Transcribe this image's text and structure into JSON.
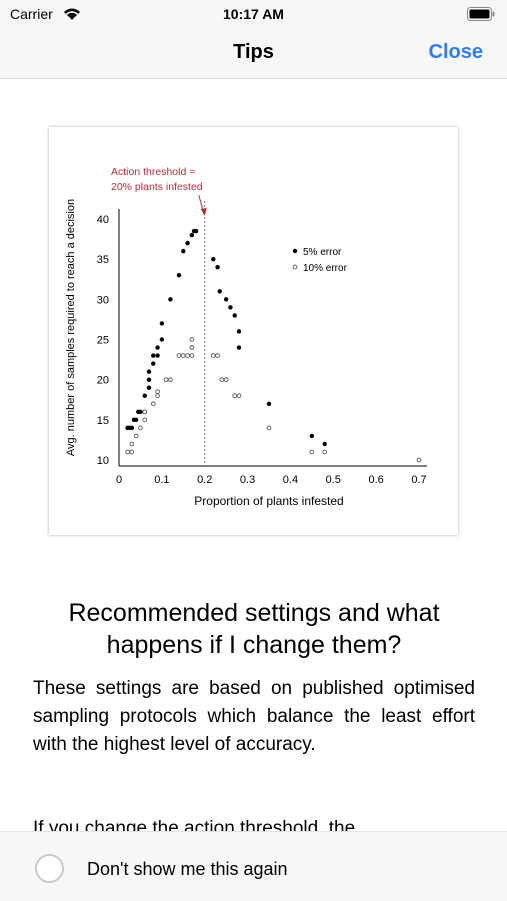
{
  "status_bar": {
    "carrier": "Carrier",
    "time": "10:17 AM"
  },
  "nav": {
    "title": "Tips",
    "close_label": "Close"
  },
  "chart_data": {
    "type": "scatter",
    "annotation": [
      "Action threshold =",
      "20% plants infested"
    ],
    "xlabel": "Proportion of plants infested",
    "ylabel": "Avg. number of samples required to reach a decision",
    "xlim": [
      0,
      0.7
    ],
    "ylim": [
      10,
      40
    ],
    "x_ticks": [
      0,
      0.1,
      0.2,
      0.3,
      0.4,
      0.5,
      0.6,
      0.7
    ],
    "x_tick_labels": [
      "0",
      "0.1",
      "0.2",
      "0.3",
      "0.4",
      "0.5",
      "0.6",
      "0.7"
    ],
    "y_ticks": [
      10,
      15,
      20,
      25,
      30,
      35,
      40
    ],
    "y_tick_labels": [
      "10",
      "15",
      "20",
      "25",
      "30",
      "35",
      "40"
    ],
    "threshold_x": 0.2,
    "legend_position": "top-right",
    "series": [
      {
        "name": "5% error",
        "marker": "filled",
        "color": "#000000",
        "points": [
          [
            0.02,
            14
          ],
          [
            0.025,
            14
          ],
          [
            0.03,
            14
          ],
          [
            0.035,
            15
          ],
          [
            0.04,
            15
          ],
          [
            0.045,
            16
          ],
          [
            0.05,
            16
          ],
          [
            0.06,
            16
          ],
          [
            0.06,
            18
          ],
          [
            0.07,
            19
          ],
          [
            0.07,
            20
          ],
          [
            0.07,
            21
          ],
          [
            0.08,
            22
          ],
          [
            0.08,
            23
          ],
          [
            0.09,
            23
          ],
          [
            0.09,
            24
          ],
          [
            0.1,
            25
          ],
          [
            0.1,
            27
          ],
          [
            0.12,
            30
          ],
          [
            0.14,
            33
          ],
          [
            0.15,
            36
          ],
          [
            0.16,
            37
          ],
          [
            0.17,
            38
          ],
          [
            0.175,
            38.5
          ],
          [
            0.18,
            38.5
          ],
          [
            0.22,
            35
          ],
          [
            0.23,
            34
          ],
          [
            0.235,
            31
          ],
          [
            0.25,
            30
          ],
          [
            0.26,
            29
          ],
          [
            0.27,
            28
          ],
          [
            0.28,
            26
          ],
          [
            0.28,
            24
          ],
          [
            0.35,
            17
          ],
          [
            0.45,
            13
          ],
          [
            0.48,
            12
          ]
        ]
      },
      {
        "name": "10% error",
        "marker": "open",
        "color": "#555555",
        "points": [
          [
            0.02,
            11
          ],
          [
            0.03,
            11
          ],
          [
            0.03,
            12
          ],
          [
            0.04,
            13
          ],
          [
            0.05,
            14
          ],
          [
            0.06,
            15
          ],
          [
            0.06,
            16
          ],
          [
            0.08,
            17
          ],
          [
            0.09,
            18
          ],
          [
            0.09,
            18.5
          ],
          [
            0.11,
            20
          ],
          [
            0.12,
            20
          ],
          [
            0.14,
            23
          ],
          [
            0.15,
            23
          ],
          [
            0.16,
            23
          ],
          [
            0.17,
            23
          ],
          [
            0.17,
            24
          ],
          [
            0.17,
            25
          ],
          [
            0.22,
            23
          ],
          [
            0.23,
            23
          ],
          [
            0.24,
            20
          ],
          [
            0.25,
            20
          ],
          [
            0.27,
            18
          ],
          [
            0.28,
            18
          ],
          [
            0.35,
            14
          ],
          [
            0.45,
            11
          ],
          [
            0.48,
            11
          ],
          [
            0.7,
            10
          ]
        ]
      }
    ]
  },
  "section": {
    "heading": "Recommended settings and what happens if I change them?",
    "paragraph1": "These settings are based on published optimised sampling protocols which balance the least effort with the highest level of accuracy.",
    "paragraph2": "If you change the action threshold, the"
  },
  "footer": {
    "checkbox_label": "Don't show me this again"
  }
}
